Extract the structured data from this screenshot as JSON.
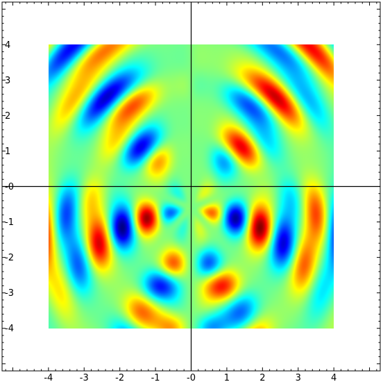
{
  "chart_data": {
    "type": "heatmap",
    "title": "",
    "xlabel": "",
    "ylabel": "",
    "xlim": [
      -5.3,
      5.3
    ],
    "ylim": [
      -5.2,
      5.2
    ],
    "data_extent": {
      "x": [
        -4,
        4
      ],
      "y": [
        -4,
        4
      ]
    },
    "grid": false,
    "frame": "box",
    "axes_through_origin": true,
    "minor_ticks_per_unit": 5,
    "colormap": "jet",
    "x_ticks": [
      -4,
      -3,
      -2,
      -1,
      0,
      1,
      2,
      3,
      4
    ],
    "x_tick_labels": [
      "-4",
      "-3",
      "-2",
      "-1",
      "-0",
      "1",
      "2",
      "3",
      "4"
    ],
    "y_ticks": [
      4,
      3,
      2,
      1,
      0,
      -1,
      -2,
      -3,
      -4
    ],
    "y_tick_labels": [
      "4",
      "3",
      "2",
      "1",
      "-0",
      "-1",
      "-2",
      "-3",
      "-4"
    ],
    "feature_extrema": [
      {
        "x": -0.9,
        "y": -0.7,
        "sign": "min"
      },
      {
        "x": 0.9,
        "y": -0.7,
        "sign": "max"
      },
      {
        "x": -1.3,
        "y": -1.6,
        "sign": "max"
      },
      {
        "x": 1.3,
        "y": -1.6,
        "sign": "min"
      }
    ]
  }
}
